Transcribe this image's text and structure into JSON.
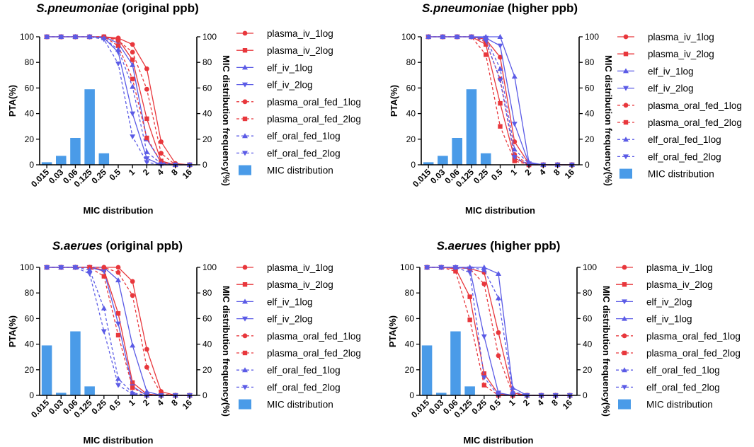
{
  "colors": {
    "red": "#e8373c",
    "blue": "#5b5be6",
    "bar": "#4a9be8"
  },
  "chart_data": [
    {
      "type": "line+bar",
      "title_species": "S.pneumoniae",
      "title_rest": " (original ppb)",
      "xlabel": "MIC distribution",
      "ylabel": "PTA(%)",
      "y2label": "MIC distribution frequency(%)",
      "ylim": [
        0,
        100
      ],
      "y2lim": [
        0,
        100
      ],
      "yticks": [
        0,
        20,
        40,
        60,
        80,
        100
      ],
      "categories": [
        "0.015",
        "0.03",
        "0.06",
        "0.125",
        "0.25",
        "0.5",
        "1",
        "2",
        "4",
        "8",
        "16"
      ],
      "bars": {
        "name": "MIC distribution",
        "values": [
          2,
          7,
          21,
          59,
          9,
          0,
          0,
          0,
          0,
          0,
          0
        ]
      },
      "series": [
        {
          "name": "plasma_iv_1log",
          "color": "red",
          "marker": "circle",
          "dashed": false,
          "values": [
            100,
            100,
            100,
            100,
            100,
            99,
            94,
            75,
            18,
            1,
            0
          ]
        },
        {
          "name": "plasma_iv_2log",
          "color": "red",
          "marker": "square",
          "dashed": false,
          "values": [
            100,
            100,
            100,
            100,
            100,
            98,
            82,
            36,
            3,
            0,
            0
          ]
        },
        {
          "name": "elf_iv_1log",
          "color": "blue",
          "marker": "triangle-up",
          "dashed": false,
          "values": [
            100,
            100,
            100,
            100,
            100,
            95,
            78,
            20,
            2,
            0,
            0
          ]
        },
        {
          "name": "elf_iv_2log",
          "color": "blue",
          "marker": "triangle-down",
          "dashed": false,
          "values": [
            100,
            100,
            100,
            100,
            99,
            88,
            40,
            5,
            0,
            0,
            0
          ]
        },
        {
          "name": "plasma_oral_fed_1log",
          "color": "red",
          "marker": "circle",
          "dashed": true,
          "values": [
            100,
            100,
            100,
            100,
            100,
            97,
            88,
            59,
            9,
            0,
            0
          ]
        },
        {
          "name": "plasma_oral_fed_2log",
          "color": "red",
          "marker": "square",
          "dashed": true,
          "values": [
            100,
            100,
            100,
            100,
            100,
            93,
            67,
            21,
            2,
            0,
            0
          ]
        },
        {
          "name": "elf_oral_fed_1log",
          "color": "blue",
          "marker": "triangle-up",
          "dashed": true,
          "values": [
            100,
            100,
            100,
            100,
            99,
            90,
            61,
            10,
            1,
            0,
            0
          ]
        },
        {
          "name": "elf_oral_fed_2log",
          "color": "blue",
          "marker": "triangle-down",
          "dashed": true,
          "values": [
            100,
            100,
            100,
            100,
            98,
            79,
            22,
            2,
            0,
            0,
            0
          ]
        }
      ]
    },
    {
      "type": "line+bar",
      "title_species": "S.pneumoniae",
      "title_rest": " (higher ppb)",
      "xlabel": "MIC distribution",
      "ylabel": "PTA(%)",
      "y2label": "MIC distribution frequency(%)",
      "ylim": [
        0,
        100
      ],
      "y2lim": [
        0,
        100
      ],
      "yticks": [
        0,
        20,
        40,
        60,
        80,
        100
      ],
      "categories": [
        "0.015",
        "0.03",
        "0.06",
        "0.125",
        "0.25",
        "0.5",
        "1",
        "2",
        "4",
        "8",
        "16"
      ],
      "bars": {
        "name": "MIC distribution",
        "values": [
          2,
          7,
          21,
          59,
          9,
          0,
          0,
          0,
          0,
          0,
          0
        ]
      },
      "series": [
        {
          "name": "plasma_iv_1log",
          "color": "red",
          "marker": "circle",
          "dashed": false,
          "values": [
            100,
            100,
            100,
            100,
            98,
            84,
            18,
            1,
            0,
            0,
            0
          ]
        },
        {
          "name": "plasma_iv_2log",
          "color": "red",
          "marker": "square",
          "dashed": false,
          "values": [
            100,
            100,
            100,
            100,
            94,
            48,
            5,
            0,
            0,
            0,
            0
          ]
        },
        {
          "name": "elf_iv_1log",
          "color": "blue",
          "marker": "triangle-up",
          "dashed": false,
          "values": [
            100,
            100,
            100,
            100,
            100,
            100,
            69,
            2,
            0,
            0,
            0
          ]
        },
        {
          "name": "elf_iv_2log",
          "color": "blue",
          "marker": "triangle-down",
          "dashed": false,
          "values": [
            100,
            100,
            100,
            100,
            99,
            93,
            32,
            1,
            0,
            0,
            0
          ]
        },
        {
          "name": "plasma_oral_fed_1log",
          "color": "red",
          "marker": "circle",
          "dashed": true,
          "values": [
            100,
            100,
            100,
            100,
            96,
            67,
            8,
            0,
            0,
            0,
            0
          ]
        },
        {
          "name": "plasma_oral_fed_2log",
          "color": "red",
          "marker": "square",
          "dashed": true,
          "values": [
            100,
            100,
            100,
            100,
            86,
            30,
            3,
            0,
            0,
            0,
            0
          ]
        },
        {
          "name": "elf_oral_fed_1log",
          "color": "blue",
          "marker": "triangle-up",
          "dashed": true,
          "values": [
            100,
            100,
            100,
            100,
            99,
            75,
            12,
            1,
            0,
            0,
            0
          ]
        },
        {
          "name": "elf_oral_fed_2log",
          "color": "blue",
          "marker": "triangle-down",
          "dashed": true,
          "values": [
            100,
            100,
            100,
            100,
            97,
            66,
            6,
            0,
            0,
            0,
            0
          ]
        }
      ]
    },
    {
      "type": "line+bar",
      "title_species": "S.aerues",
      "title_rest": " (original ppb)",
      "xlabel": "MIC distribution",
      "ylabel": "PTA(%)",
      "y2label": "MIC distribution frequency(%)",
      "ylim": [
        0,
        100
      ],
      "y2lim": [
        0,
        100
      ],
      "yticks": [
        0,
        20,
        40,
        60,
        80,
        100
      ],
      "categories": [
        "0.015",
        "0.03",
        "0.06",
        "0.125",
        "0.25",
        "0.5",
        "1",
        "2",
        "4",
        "8",
        "16"
      ],
      "bars": {
        "name": "MIC distribution",
        "values": [
          39,
          2,
          50,
          7,
          0,
          0,
          0,
          0,
          0,
          0,
          0
        ]
      },
      "series": [
        {
          "name": "plasma_iv_1log",
          "color": "red",
          "marker": "circle",
          "dashed": false,
          "values": [
            100,
            100,
            100,
            100,
            100,
            100,
            89,
            36,
            3,
            0,
            0
          ]
        },
        {
          "name": "plasma_iv_2log",
          "color": "red",
          "marker": "square",
          "dashed": false,
          "values": [
            100,
            100,
            100,
            100,
            98,
            64,
            10,
            1,
            0,
            0,
            0
          ]
        },
        {
          "name": "elf_iv_1log",
          "color": "blue",
          "marker": "triangle-up",
          "dashed": false,
          "values": [
            100,
            100,
            100,
            100,
            100,
            90,
            39,
            3,
            0,
            0,
            0
          ]
        },
        {
          "name": "elf_iv_2log",
          "color": "blue",
          "marker": "triangle-down",
          "dashed": false,
          "values": [
            100,
            100,
            100,
            100,
            97,
            56,
            7,
            0,
            0,
            0,
            0
          ]
        },
        {
          "name": "plasma_oral_fed_1log",
          "color": "red",
          "marker": "circle",
          "dashed": true,
          "values": [
            100,
            100,
            100,
            100,
            100,
            96,
            78,
            22,
            1,
            0,
            0
          ]
        },
        {
          "name": "plasma_oral_fed_2log",
          "color": "red",
          "marker": "square",
          "dashed": true,
          "values": [
            100,
            100,
            100,
            100,
            93,
            47,
            6,
            0,
            0,
            0,
            0
          ]
        },
        {
          "name": "elf_oral_fed_1log",
          "color": "blue",
          "marker": "triangle-up",
          "dashed": true,
          "values": [
            100,
            100,
            100,
            98,
            68,
            13,
            2,
            0,
            0,
            0,
            0
          ]
        },
        {
          "name": "elf_oral_fed_2log",
          "color": "blue",
          "marker": "triangle-down",
          "dashed": true,
          "values": [
            100,
            100,
            100,
            95,
            50,
            8,
            1,
            0,
            0,
            0,
            0
          ]
        }
      ]
    },
    {
      "type": "line+bar",
      "title_species": "S.aerues",
      "title_rest": " (higher ppb)",
      "xlabel": "MIC distribution",
      "ylabel": "PTA(%)",
      "y2label": "MIC distribution frequency(%)",
      "ylim": [
        0,
        100
      ],
      "y2lim": [
        0,
        100
      ],
      "yticks": [
        0,
        20,
        40,
        60,
        80,
        100
      ],
      "categories": [
        "0.015",
        "0.03",
        "0.06",
        "0.125",
        "0.25",
        "0.5",
        "1",
        "2",
        "4",
        "8",
        "16"
      ],
      "bars": {
        "name": "MIC distribution",
        "values": [
          39,
          2,
          50,
          7,
          0,
          0,
          0,
          0,
          0,
          0,
          0
        ]
      },
      "series": [
        {
          "name": "plasma_iv_1log",
          "color": "red",
          "marker": "circle",
          "dashed": false,
          "values": [
            100,
            100,
            100,
            99,
            96,
            49,
            2,
            0,
            0,
            0,
            0
          ]
        },
        {
          "name": "plasma_iv_2log",
          "color": "red",
          "marker": "square",
          "dashed": false,
          "values": [
            100,
            100,
            99,
            77,
            17,
            1,
            0,
            0,
            0,
            0,
            0
          ]
        },
        {
          "name": "elf_iv_2log",
          "color": "blue",
          "marker": "triangle-down",
          "dashed": false,
          "values": [
            100,
            100,
            100,
            99,
            46,
            2,
            0,
            0,
            0,
            0,
            0
          ]
        },
        {
          "name": "elf_iv_1log",
          "color": "blue",
          "marker": "triangle-up",
          "dashed": false,
          "values": [
            100,
            100,
            100,
            100,
            100,
            95,
            6,
            0,
            0,
            0,
            0
          ]
        },
        {
          "name": "plasma_oral_fed_1log",
          "color": "red",
          "marker": "circle",
          "dashed": true,
          "values": [
            100,
            100,
            100,
            99,
            87,
            31,
            1,
            0,
            0,
            0,
            0
          ]
        },
        {
          "name": "plasma_oral_fed_2log",
          "color": "red",
          "marker": "square",
          "dashed": true,
          "values": [
            100,
            100,
            97,
            59,
            8,
            0,
            0,
            0,
            0,
            0,
            0
          ]
        },
        {
          "name": "elf_oral_fed_1log",
          "color": "blue",
          "marker": "triangle-up",
          "dashed": true,
          "values": [
            100,
            100,
            100,
            100,
            98,
            76,
            3,
            0,
            0,
            0,
            0
          ]
        },
        {
          "name": "elf_oral_fed_2log",
          "color": "blue",
          "marker": "triangle-down",
          "dashed": true,
          "values": [
            100,
            100,
            100,
            96,
            14,
            0,
            0,
            0,
            0,
            0,
            0
          ]
        }
      ]
    }
  ]
}
